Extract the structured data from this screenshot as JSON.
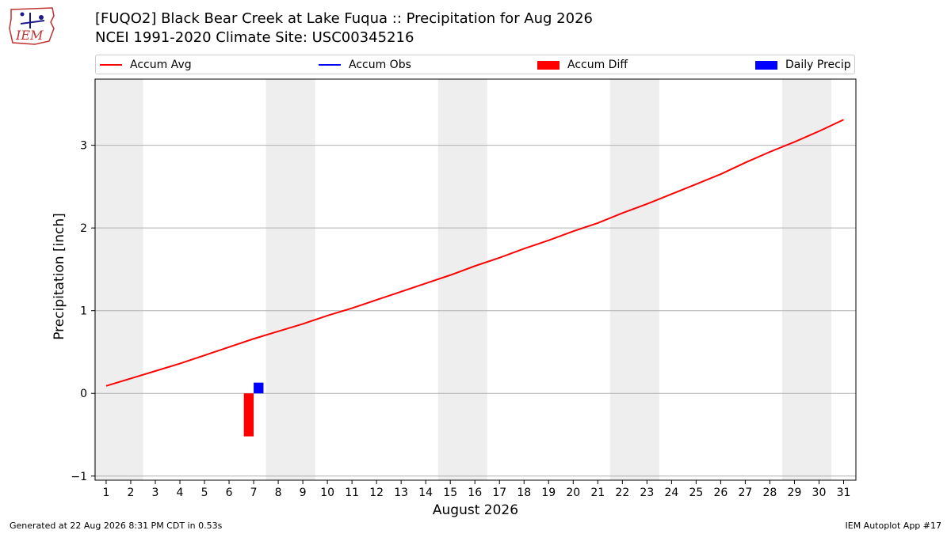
{
  "header": {
    "title_line1": "[FUQO2] Black Bear Creek at Lake Fuqua :: Precipitation for Aug 2026",
    "title_line2": "NCEI 1991-2020 Climate Site: USC00345216",
    "logo_text": "IEM"
  },
  "legend": {
    "items": [
      {
        "label": "Accum Avg",
        "color": "#ff0000",
        "kind": "line"
      },
      {
        "label": "Accum Obs",
        "color": "#0000ff",
        "kind": "line"
      },
      {
        "label": "Accum Diff",
        "color": "#ff0000",
        "kind": "box"
      },
      {
        "label": "Daily Precip",
        "color": "#0000ff",
        "kind": "box"
      }
    ]
  },
  "chart_data": {
    "type": "line",
    "xlabel": "August 2026",
    "ylabel": "Precipitation [inch]",
    "x_categories": [
      "1",
      "2",
      "3",
      "4",
      "5",
      "6",
      "7",
      "8",
      "9",
      "10",
      "11",
      "12",
      "13",
      "14",
      "15",
      "16",
      "17",
      "18",
      "19",
      "20",
      "21",
      "22",
      "23",
      "24",
      "25",
      "26",
      "27",
      "28",
      "29",
      "30",
      "31"
    ],
    "xlim": [
      0.55,
      31.5
    ],
    "ylim": [
      -1.05,
      3.8
    ],
    "yticks": [
      -1,
      0,
      1,
      2,
      3
    ],
    "ytick_labels": [
      "−1",
      "0",
      "1",
      "2",
      "3"
    ],
    "grid": "horizontal",
    "weekend_shading": [
      [
        0.5,
        2.5
      ],
      [
        7.5,
        9.5
      ],
      [
        14.5,
        16.5
      ],
      [
        21.5,
        23.5
      ],
      [
        28.5,
        30.5
      ]
    ],
    "weekend_color": "#eeeeee",
    "series": [
      {
        "name": "Accum Avg",
        "type": "line",
        "color": "#ff0000",
        "x": [
          1,
          2,
          3,
          4,
          5,
          6,
          7,
          8,
          9,
          10,
          11,
          12,
          13,
          14,
          15,
          16,
          17,
          18,
          19,
          20,
          21,
          22,
          23,
          24,
          25,
          26,
          27,
          28,
          29,
          30,
          31
        ],
        "values": [
          0.09,
          0.18,
          0.27,
          0.36,
          0.46,
          0.56,
          0.66,
          0.75,
          0.84,
          0.94,
          1.03,
          1.13,
          1.23,
          1.33,
          1.43,
          1.54,
          1.64,
          1.75,
          1.85,
          1.96,
          2.06,
          2.18,
          2.29,
          2.41,
          2.53,
          2.65,
          2.79,
          2.92,
          3.04,
          3.17,
          3.31
        ]
      },
      {
        "name": "Accum Obs",
        "type": "line",
        "color": "#0000ff",
        "x": [],
        "values": []
      },
      {
        "name": "Accum Diff",
        "type": "bar",
        "color": "#ff0000",
        "x": [
          6.8
        ],
        "values": [
          -0.52
        ]
      },
      {
        "name": "Daily Precip",
        "type": "bar",
        "color": "#0000ff",
        "x": [
          7.2
        ],
        "values": [
          0.13
        ]
      }
    ]
  },
  "footer": {
    "left": "Generated at 22 Aug 2026 8:31 PM CDT in 0.53s",
    "right": "IEM Autoplot App #17"
  }
}
